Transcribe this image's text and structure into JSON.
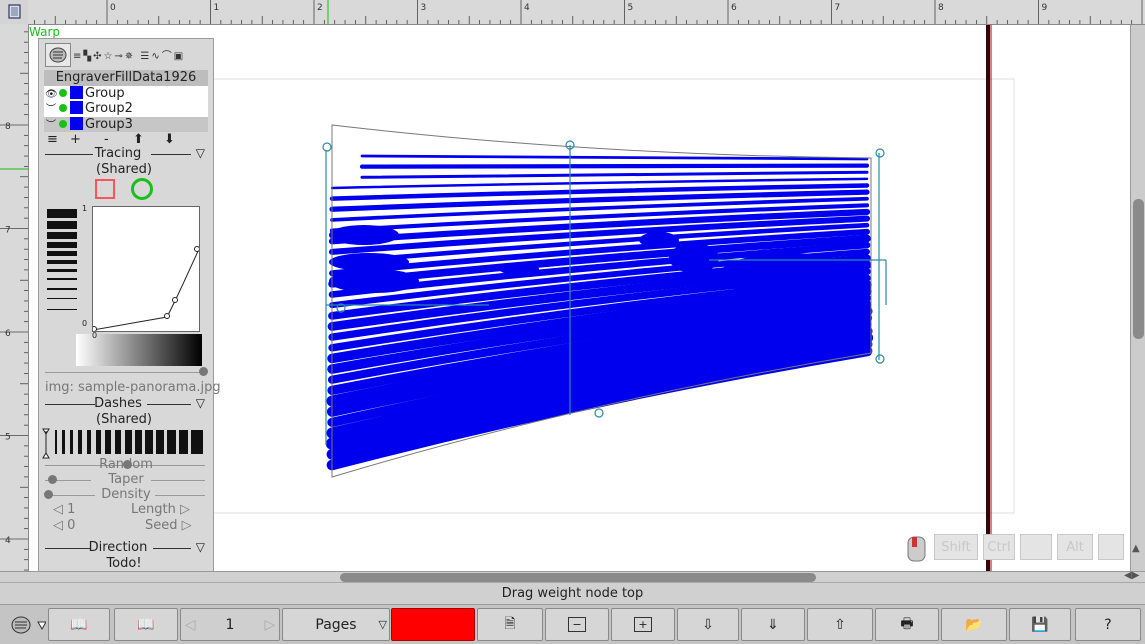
{
  "app": {
    "mode_label": "Warp"
  },
  "ruler": {
    "h_numbers": [
      "0",
      "1",
      "2",
      "3",
      "4",
      "5",
      "6",
      "7",
      "8",
      "9"
    ],
    "v_numbers": [
      "8",
      "7",
      "6",
      "5",
      "4"
    ]
  },
  "panel": {
    "object_name": "EngraverFillData1926",
    "layers": [
      {
        "name": "Group",
        "color": "#0000ee"
      },
      {
        "name": "Group2",
        "color": "#0000ee"
      },
      {
        "name": "Group3",
        "color": "#0000ee"
      }
    ],
    "layer_buttons": {
      "menu": "≡",
      "add": "+",
      "remove": "-",
      "up": "⬆",
      "down": "⬇"
    },
    "tracing": {
      "title": "Tracing",
      "sub": "(Shared)",
      "curve_max": "1",
      "curve_min": "0",
      "grad_label": "0",
      "image_label": "img: sample-panorama.jpg"
    },
    "dashes": {
      "title": "Dashes",
      "sub": "(Shared)"
    },
    "params": {
      "random": "Random",
      "taper": "Taper",
      "density": "Density",
      "length_label": "Length ▷",
      "length_value": "◁ 1",
      "seed_label": "Seed ▷",
      "seed_value": "◁ 0"
    },
    "direction": {
      "title": "Direction",
      "value": "Todo!"
    }
  },
  "modifiers": {
    "shift": "Shift",
    "ctrl": "Ctrl",
    "alt": "Alt"
  },
  "status": {
    "message": "Drag weight node top"
  },
  "toolbar": {
    "page_number": "1",
    "pages_label": "Pages",
    "color_swatch": "#ff0000"
  },
  "colors": {
    "fill": "#0000ee",
    "accent_green": "#18c018"
  }
}
